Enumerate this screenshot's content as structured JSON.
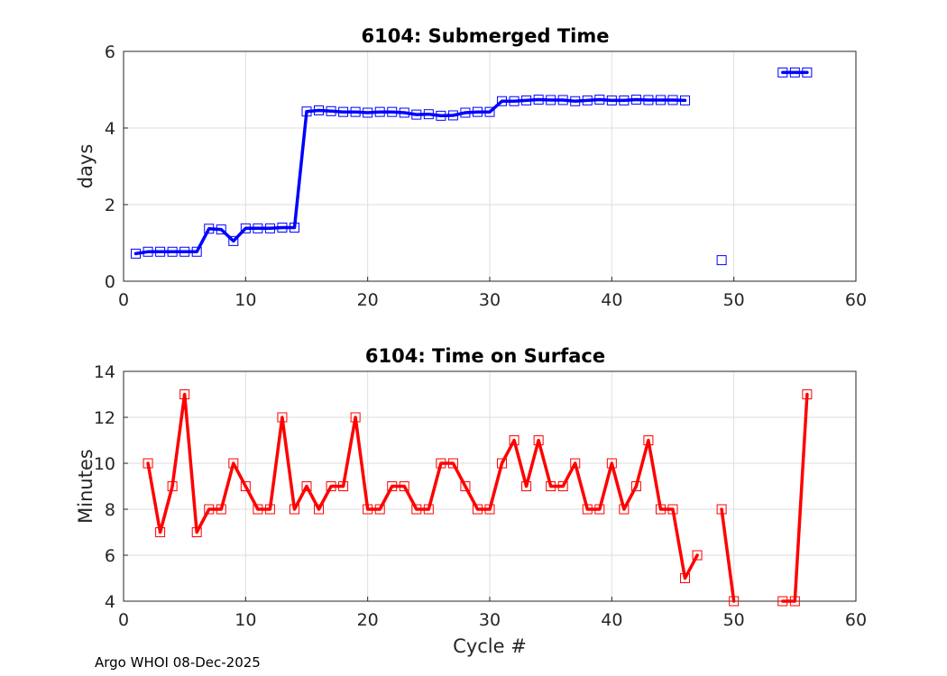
{
  "chart_data": [
    {
      "type": "line",
      "title": "6104: Submerged Time",
      "xlabel": "",
      "ylabel": "days",
      "xlim": [
        0,
        60
      ],
      "ylim": [
        0,
        6
      ],
      "xticks": [
        "0",
        "10",
        "20",
        "30",
        "40",
        "50",
        "60"
      ],
      "yticks": [
        "0",
        "2",
        "4",
        "6"
      ],
      "grid": true,
      "color": "#0000ff",
      "marker": "square",
      "series": [
        {
          "name": "submerged time",
          "x": [
            1,
            2,
            3,
            4,
            5,
            6,
            7,
            8,
            9,
            10,
            11,
            12,
            13,
            14,
            15,
            16,
            17,
            18,
            19,
            20,
            21,
            22,
            23,
            24,
            25,
            26,
            27,
            28,
            29,
            30,
            31,
            32,
            33,
            34,
            35,
            36,
            37,
            38,
            39,
            40,
            41,
            42,
            43,
            44,
            45,
            46,
            49,
            54,
            55,
            56
          ],
          "y": [
            0.72,
            0.77,
            0.77,
            0.77,
            0.77,
            0.77,
            1.37,
            1.35,
            1.05,
            1.38,
            1.38,
            1.38,
            1.4,
            1.4,
            4.43,
            4.46,
            4.44,
            4.42,
            4.42,
            4.4,
            4.42,
            4.42,
            4.4,
            4.35,
            4.36,
            4.32,
            4.33,
            4.4,
            4.42,
            4.42,
            4.7,
            4.7,
            4.72,
            4.74,
            4.73,
            4.73,
            4.7,
            4.72,
            4.74,
            4.72,
            4.72,
            4.74,
            4.73,
            4.73,
            4.73,
            4.72,
            0.55,
            5.45,
            5.45,
            5.45
          ],
          "connected_ranges": [
            [
              1,
              46
            ],
            [
              54,
              56
            ]
          ]
        }
      ]
    },
    {
      "type": "line",
      "title": "6104: Time on Surface",
      "xlabel": "Cycle #",
      "ylabel": "Minutes",
      "xlim": [
        0,
        60
      ],
      "ylim": [
        4,
        14
      ],
      "xticks": [
        "0",
        "10",
        "20",
        "30",
        "40",
        "50",
        "60"
      ],
      "yticks": [
        "4",
        "6",
        "8",
        "10",
        "12",
        "14"
      ],
      "grid": true,
      "color": "#ff0000",
      "marker": "square",
      "series": [
        {
          "name": "time on surface",
          "x": [
            2,
            3,
            4,
            5,
            6,
            7,
            8,
            9,
            10,
            11,
            12,
            13,
            14,
            15,
            16,
            17,
            18,
            19,
            20,
            21,
            22,
            23,
            24,
            25,
            26,
            27,
            28,
            29,
            30,
            31,
            32,
            33,
            34,
            35,
            36,
            37,
            38,
            39,
            40,
            41,
            42,
            43,
            44,
            45,
            46,
            47,
            49,
            50,
            54,
            55,
            56
          ],
          "y": [
            10,
            7,
            9,
            13,
            7,
            8,
            8,
            10,
            9,
            8,
            8,
            12,
            8,
            9,
            8,
            9,
            9,
            12,
            8,
            8,
            9,
            9,
            8,
            8,
            10,
            10,
            9,
            8,
            8,
            10,
            11,
            9,
            11,
            9,
            9,
            10,
            8,
            8,
            10,
            8,
            9,
            11,
            8,
            8,
            5,
            6,
            8,
            4,
            4,
            4,
            13
          ],
          "connected_ranges": [
            [
              2,
              47
            ],
            [
              49,
              50
            ],
            [
              54,
              56
            ]
          ]
        }
      ]
    }
  ],
  "footer": "Argo WHOI 08-Dec-2025"
}
